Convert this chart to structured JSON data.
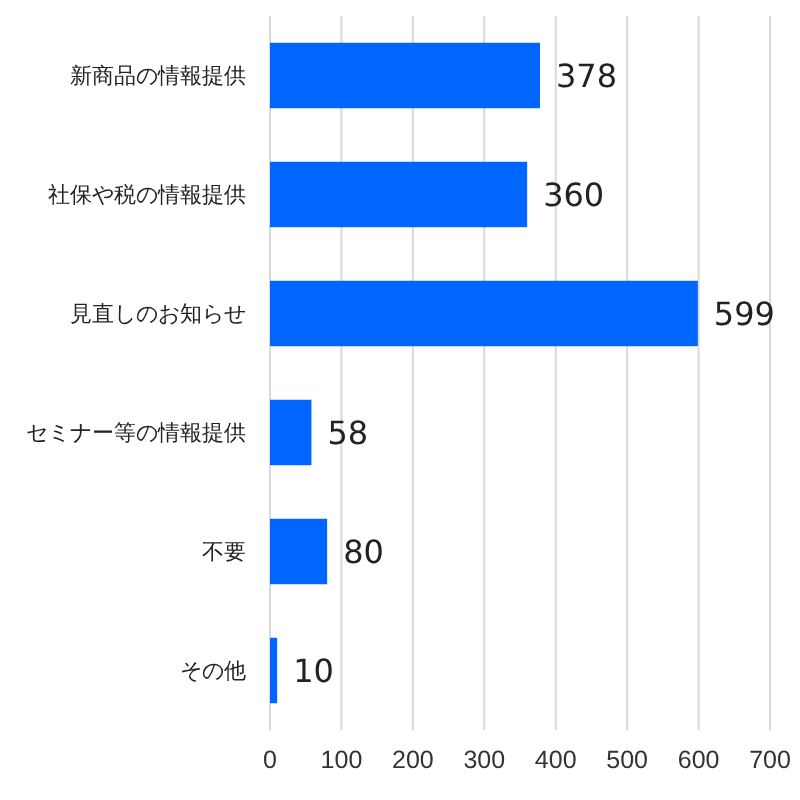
{
  "chart_data": {
    "type": "bar",
    "orientation": "horizontal",
    "categories": [
      "新商品の情報提供",
      "社保や税の情報提供",
      "見直しのお知らせ",
      "セミナー等の情報提供",
      "不要",
      "その他"
    ],
    "values": [
      378,
      360,
      599,
      58,
      80,
      10
    ],
    "color": "#0066ff",
    "xlim": [
      0,
      700
    ],
    "xticks": [
      0,
      100,
      200,
      300,
      400,
      500,
      600,
      700
    ],
    "grid": "x",
    "data_labels": true
  }
}
